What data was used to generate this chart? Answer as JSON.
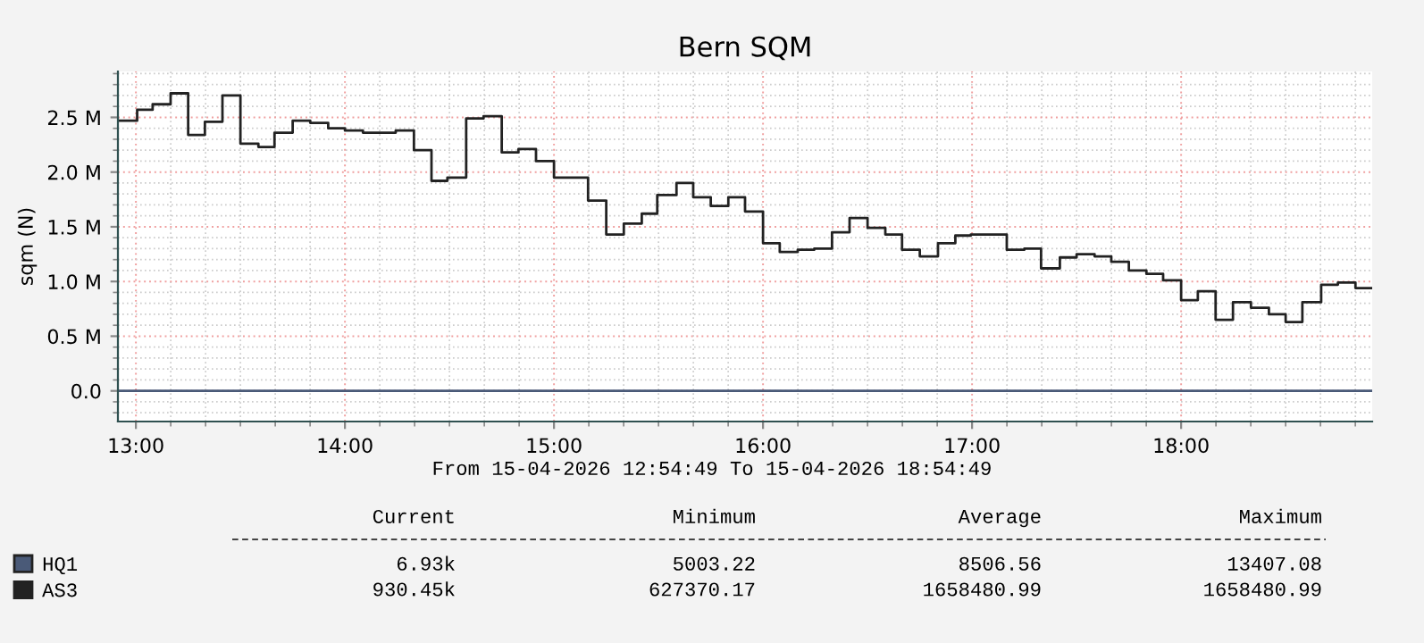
{
  "chart_data": {
    "type": "step",
    "title": "Bern SQM",
    "ylabel": "sqm (N)",
    "xlim": [
      12.914,
      18.914
    ],
    "xticks": [
      {
        "value": 13,
        "label": "13:00"
      },
      {
        "value": 14,
        "label": "14:00"
      },
      {
        "value": 15,
        "label": "15:00"
      },
      {
        "value": 16,
        "label": "16:00"
      },
      {
        "value": 17,
        "label": "17:00"
      },
      {
        "value": 18,
        "label": "18:00"
      }
    ],
    "ylim": [
      -280000,
      2920000
    ],
    "yticks": [
      {
        "value": 0,
        "label": "0.0"
      },
      {
        "value": 500000,
        "label": "0.5 M"
      },
      {
        "value": 1000000,
        "label": "1.0 M"
      },
      {
        "value": 1500000,
        "label": "1.5 M"
      },
      {
        "value": 2000000,
        "label": "2.0 M"
      },
      {
        "value": 2500000,
        "label": "2.5 M"
      }
    ],
    "grid": true,
    "legend": "bottom left",
    "series": [
      {
        "name": "HQ1",
        "color": "#4a5a78",
        "x": [
          12.914,
          18.914
        ],
        "values": [
          0,
          0
        ]
      },
      {
        "name": "AS3",
        "color": "#222222",
        "x": [
          12.914,
          13.006,
          13.08,
          13.166,
          13.25,
          13.33,
          13.414,
          13.5,
          13.586,
          13.663,
          13.75,
          13.834,
          13.92,
          14.0,
          14.086,
          14.243,
          14.33,
          14.414,
          14.49,
          14.58,
          14.663,
          14.75,
          14.83,
          14.914,
          15.0,
          15.163,
          15.25,
          15.334,
          15.42,
          15.494,
          15.586,
          15.666,
          15.75,
          15.834,
          15.914,
          16.0,
          16.08,
          16.166,
          16.245,
          16.33,
          16.414,
          16.5,
          16.585,
          16.665,
          16.75,
          16.837,
          16.92,
          16.994,
          17.166,
          17.25,
          17.33,
          17.42,
          17.5,
          17.586,
          17.666,
          17.75,
          17.834,
          17.914,
          18.0,
          18.08,
          18.165,
          18.248,
          18.334,
          18.42,
          18.5,
          18.58,
          18.67,
          18.75,
          18.834,
          18.914
        ],
        "values": [
          2470000,
          2570000,
          2620000,
          2720000,
          2340000,
          2460000,
          2700000,
          2260000,
          2230000,
          2360000,
          2470000,
          2450000,
          2400000,
          2380000,
          2360000,
          2380000,
          2200000,
          1920000,
          1950000,
          2490000,
          2510000,
          2180000,
          2210000,
          2100000,
          1950000,
          1740000,
          1430000,
          1530000,
          1620000,
          1790000,
          1900000,
          1770000,
          1690000,
          1770000,
          1640000,
          1350000,
          1270000,
          1290000,
          1300000,
          1450000,
          1580000,
          1490000,
          1430000,
          1290000,
          1230000,
          1350000,
          1420000,
          1430000,
          1290000,
          1300000,
          1120000,
          1220000,
          1250000,
          1230000,
          1180000,
          1100000,
          1070000,
          1010000,
          830000,
          910000,
          650000,
          810000,
          760000,
          700000,
          630000,
          810000,
          970000,
          990000,
          940000,
          940000
        ]
      }
    ],
    "annotations": [
      "From 15-04-2026 12:54:49 To 15-04-2026 18:54:49",
      "Current",
      "Minimum",
      "Average",
      "Maximum",
      "6.93k",
      "5003.22",
      "8506.56",
      "13407.08",
      "930.45k",
      "627370.17",
      "1658480.99",
      "1658480.99"
    ]
  }
}
